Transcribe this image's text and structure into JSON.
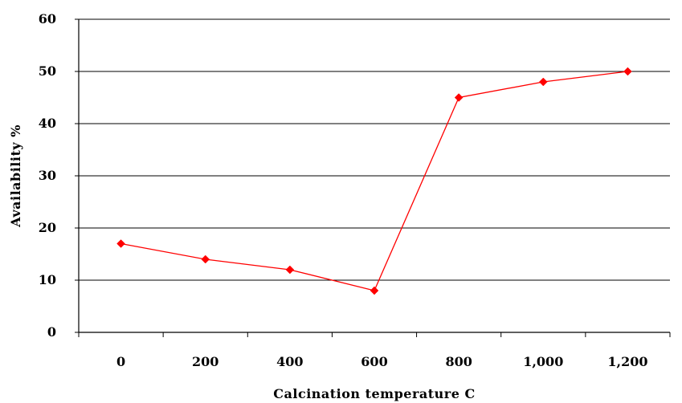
{
  "chart_data": {
    "type": "line",
    "title": "",
    "xlabel": "Calcination temperature C",
    "ylabel": "Availability %",
    "categories": [
      "0",
      "200",
      "400",
      "600",
      "800",
      "1,000",
      "1,200"
    ],
    "series": [
      {
        "values": [
          17,
          14,
          12,
          8,
          45,
          48,
          50
        ],
        "color": "#ff0000",
        "marker": "diamond"
      }
    ],
    "ylim": [
      0,
      60
    ],
    "yticks": [
      "0",
      "10",
      "20",
      "30",
      "40",
      "50",
      "60"
    ],
    "grid": "horizontal",
    "legend": "none"
  }
}
